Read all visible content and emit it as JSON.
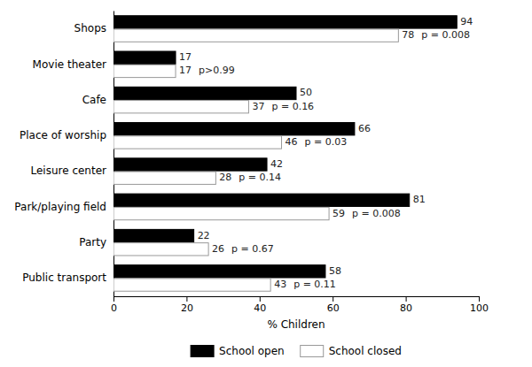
{
  "chart_data": {
    "type": "bar",
    "orientation": "horizontal",
    "categories": [
      "Shops",
      "Movie theater",
      "Cafe",
      "Place of worship",
      "Leisure center",
      "Park/playing field",
      "Party",
      "Public transport"
    ],
    "series": [
      {
        "name": "School open",
        "color": "#000000",
        "values": [
          94,
          17,
          50,
          66,
          42,
          81,
          22,
          58
        ]
      },
      {
        "name": "School closed",
        "color": "#ffffff",
        "values": [
          78,
          17,
          37,
          46,
          28,
          59,
          26,
          43
        ]
      }
    ],
    "annotations": [
      "p = 0.008",
      "p>0.99",
      "p = 0.16",
      "p = 0.03",
      "p = 0.14",
      "p = 0.008",
      "p = 0.67",
      "p = 0.11"
    ],
    "xlabel": "% Children",
    "xlim": [
      0,
      100
    ],
    "xticks": [
      0,
      20,
      40,
      60,
      80,
      100
    ],
    "data_labels": true,
    "grid": false,
    "legend": "bottom"
  }
}
